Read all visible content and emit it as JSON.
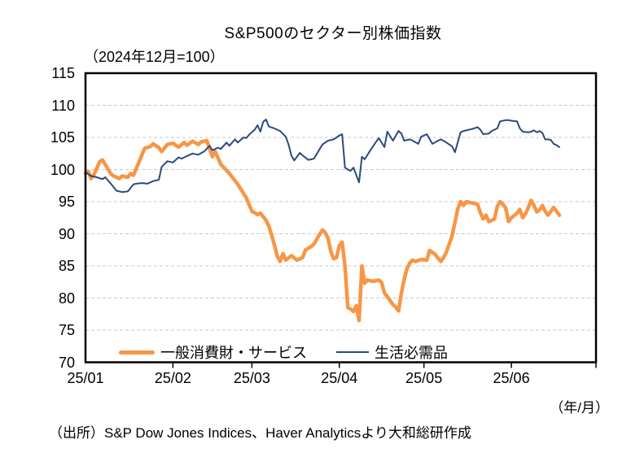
{
  "chart_data": {
    "type": "line",
    "title": "S&P500のセクター別株価指数",
    "subtitle": "（2024年12月=100）",
    "x_axis_unit_note": "（年/月）",
    "source": "（出所）S&P Dow Jones Indices、Haver Analyticsより大和総研作成",
    "ylim": [
      70,
      115
    ],
    "y_ticks": [
      115,
      110,
      105,
      100,
      95,
      90,
      85,
      80,
      75,
      70
    ],
    "x_range_days": [
      0,
      181
    ],
    "x_ticks": [
      {
        "label": "25/01",
        "day": 0
      },
      {
        "label": "25/02",
        "day": 31
      },
      {
        "label": "25/03",
        "day": 59
      },
      {
        "label": "25/04",
        "day": 90
      },
      {
        "label": "25/05",
        "day": 120
      },
      {
        "label": "25/06",
        "day": 151
      }
    ],
    "month_boundary_days": [
      31,
      59,
      90,
      120,
      151,
      181
    ],
    "grid": "horizontal-dashed",
    "grid_color": "#c8c8c8",
    "frame_color": "#000000",
    "legend_position": "bottom-inside",
    "series": [
      {
        "name": "一般消費財・サービス",
        "color": "#F79646",
        "stroke_width": 4.5,
        "points": [
          [
            0,
            99.4
          ],
          [
            1,
            99.7
          ],
          [
            2,
            98.6
          ],
          [
            3,
            99.2
          ],
          [
            5,
            101.2
          ],
          [
            6,
            101.5
          ],
          [
            7,
            100.8
          ],
          [
            9,
            99.3
          ],
          [
            10,
            99.0
          ],
          [
            12,
            98.6
          ],
          [
            13,
            99.0
          ],
          [
            15,
            98.8
          ],
          [
            16,
            99.4
          ],
          [
            17,
            99.1
          ],
          [
            19,
            101.2
          ],
          [
            21,
            103.3
          ],
          [
            23,
            103.6
          ],
          [
            24,
            104.0
          ],
          [
            26,
            103.4
          ],
          [
            27,
            102.8
          ],
          [
            29,
            103.9
          ],
          [
            31,
            104.1
          ],
          [
            33,
            103.5
          ],
          [
            35,
            104.2
          ],
          [
            36,
            103.8
          ],
          [
            38,
            104.4
          ],
          [
            40,
            103.9
          ],
          [
            41,
            104.3
          ],
          [
            43,
            104.5
          ],
          [
            45,
            102.0
          ],
          [
            46,
            102.8
          ],
          [
            48,
            100.8
          ],
          [
            51,
            99.4
          ],
          [
            54,
            97.7
          ],
          [
            57,
            95.6
          ],
          [
            59,
            93.5
          ],
          [
            61,
            93.0
          ],
          [
            62,
            93.2
          ],
          [
            64,
            92.1
          ],
          [
            65,
            91.2
          ],
          [
            66,
            89.8
          ],
          [
            67,
            88.2
          ],
          [
            68,
            86.5
          ],
          [
            69,
            85.7
          ],
          [
            70,
            86.9
          ],
          [
            71,
            85.9
          ],
          [
            73,
            86.6
          ],
          [
            75,
            85.9
          ],
          [
            77,
            86.3
          ],
          [
            78,
            87.5
          ],
          [
            80,
            88.0
          ],
          [
            81,
            88.4
          ],
          [
            83,
            89.9
          ],
          [
            84,
            90.6
          ],
          [
            85,
            90.2
          ],
          [
            86,
            89.3
          ],
          [
            87,
            87.2
          ],
          [
            88,
            86.1
          ],
          [
            89,
            86.3
          ],
          [
            90,
            88.2
          ],
          [
            91,
            88.7
          ],
          [
            92,
            85.0
          ],
          [
            93,
            78.5
          ],
          [
            94,
            78.3
          ],
          [
            95,
            77.9
          ],
          [
            96,
            78.8
          ],
          [
            97,
            76.5
          ],
          [
            98,
            85.0
          ],
          [
            99,
            82.3
          ],
          [
            100,
            82.8
          ],
          [
            102,
            82.6
          ],
          [
            104,
            82.8
          ],
          [
            105,
            82.4
          ],
          [
            106,
            80.8
          ],
          [
            107,
            80.2
          ],
          [
            109,
            79.0
          ],
          [
            110,
            78.6
          ],
          [
            111,
            78.0
          ],
          [
            112,
            80.8
          ],
          [
            113,
            82.9
          ],
          [
            114,
            84.6
          ],
          [
            115,
            85.5
          ],
          [
            116,
            85.9
          ],
          [
            117,
            85.7
          ],
          [
            119,
            86.0
          ],
          [
            121,
            85.9
          ],
          [
            122,
            87.4
          ],
          [
            124,
            86.8
          ],
          [
            125,
            86.2
          ],
          [
            126,
            85.7
          ],
          [
            127,
            86.3
          ],
          [
            128,
            87.2
          ],
          [
            130,
            89.7
          ],
          [
            131,
            91.8
          ],
          [
            132,
            93.9
          ],
          [
            133,
            95.0
          ],
          [
            134,
            94.4
          ],
          [
            135,
            95.0
          ],
          [
            137,
            94.8
          ],
          [
            139,
            94.6
          ],
          [
            140,
            93.3
          ],
          [
            141,
            92.3
          ],
          [
            142,
            92.9
          ],
          [
            143,
            91.9
          ],
          [
            145,
            92.3
          ],
          [
            146,
            94.3
          ],
          [
            147,
            95.0
          ],
          [
            148,
            94.6
          ],
          [
            149,
            94.0
          ],
          [
            150,
            91.9
          ],
          [
            151,
            92.5
          ],
          [
            153,
            93.2
          ],
          [
            154,
            93.8
          ],
          [
            155,
            92.5
          ],
          [
            156,
            93.1
          ],
          [
            157,
            94.1
          ],
          [
            158,
            95.2
          ],
          [
            159,
            94.4
          ],
          [
            160,
            93.4
          ],
          [
            161,
            93.7
          ],
          [
            162,
            94.4
          ],
          [
            163,
            93.5
          ],
          [
            164,
            92.9
          ],
          [
            165,
            93.5
          ],
          [
            166,
            94.1
          ],
          [
            167,
            93.5
          ],
          [
            168,
            92.9
          ]
        ]
      },
      {
        "name": "生活必需品",
        "color": "#2B4A7D",
        "stroke_width": 2,
        "points": [
          [
            0,
            99.6
          ],
          [
            2,
            99.0
          ],
          [
            4,
            98.8
          ],
          [
            6,
            98.5
          ],
          [
            7,
            98.8
          ],
          [
            9,
            97.8
          ],
          [
            11,
            96.7
          ],
          [
            13,
            96.5
          ],
          [
            15,
            96.6
          ],
          [
            17,
            97.7
          ],
          [
            18,
            97.8
          ],
          [
            20,
            97.9
          ],
          [
            22,
            97.8
          ],
          [
            24,
            98.2
          ],
          [
            26,
            98.4
          ],
          [
            27,
            100.4
          ],
          [
            29,
            101.3
          ],
          [
            31,
            101.1
          ],
          [
            33,
            101.9
          ],
          [
            34,
            101.7
          ],
          [
            36,
            102.1
          ],
          [
            38,
            102.5
          ],
          [
            40,
            102.3
          ],
          [
            42,
            102.8
          ],
          [
            44,
            103.7
          ],
          [
            45,
            103.0
          ],
          [
            47,
            103.4
          ],
          [
            48,
            103.2
          ],
          [
            50,
            104.2
          ],
          [
            51,
            103.7
          ],
          [
            53,
            104.7
          ],
          [
            54,
            104.2
          ],
          [
            56,
            105.0
          ],
          [
            57,
            104.9
          ],
          [
            58,
            105.4
          ],
          [
            60,
            106.2
          ],
          [
            61,
            106.9
          ],
          [
            62,
            105.9
          ],
          [
            63,
            107.4
          ],
          [
            64,
            107.8
          ],
          [
            65,
            106.7
          ],
          [
            67,
            106.4
          ],
          [
            69,
            106.0
          ],
          [
            71,
            105.1
          ],
          [
            72,
            103.9
          ],
          [
            73,
            102.2
          ],
          [
            74,
            101.4
          ],
          [
            76,
            102.6
          ],
          [
            77,
            102.2
          ],
          [
            79,
            101.5
          ],
          [
            81,
            101.7
          ],
          [
            84,
            103.9
          ],
          [
            86,
            104.5
          ],
          [
            88,
            104.7
          ],
          [
            90,
            105.3
          ],
          [
            91,
            105.5
          ],
          [
            92,
            100.3
          ],
          [
            93,
            100.0
          ],
          [
            94,
            99.8
          ],
          [
            95,
            100.3
          ],
          [
            97,
            98.0
          ],
          [
            98,
            102.0
          ],
          [
            99,
            101.6
          ],
          [
            101,
            103.0
          ],
          [
            103,
            104.3
          ],
          [
            104,
            104.9
          ],
          [
            106,
            103.5
          ],
          [
            107,
            105.9
          ],
          [
            109,
            104.5
          ],
          [
            111,
            106.0
          ],
          [
            112,
            105.6
          ],
          [
            113,
            104.5
          ],
          [
            115,
            104.7
          ],
          [
            116,
            104.5
          ],
          [
            118,
            104.0
          ],
          [
            119,
            105.1
          ],
          [
            121,
            105.5
          ],
          [
            123,
            104.0
          ],
          [
            125,
            104.5
          ],
          [
            126,
            104.7
          ],
          [
            128,
            104.2
          ],
          [
            130,
            103.6
          ],
          [
            131,
            102.7
          ],
          [
            133,
            105.8
          ],
          [
            134,
            106.0
          ],
          [
            136,
            106.2
          ],
          [
            137,
            106.3
          ],
          [
            139,
            106.6
          ],
          [
            140,
            106.2
          ],
          [
            141,
            105.5
          ],
          [
            143,
            105.6
          ],
          [
            144,
            106.0
          ],
          [
            146,
            106.4
          ],
          [
            147,
            107.5
          ],
          [
            149,
            107.7
          ],
          [
            150,
            107.7
          ],
          [
            151,
            107.6
          ],
          [
            153,
            107.5
          ],
          [
            154,
            106.4
          ],
          [
            155,
            105.9
          ],
          [
            157,
            105.8
          ],
          [
            158,
            105.9
          ],
          [
            159,
            106.1
          ],
          [
            160,
            105.8
          ],
          [
            161,
            106.0
          ],
          [
            162,
            105.7
          ],
          [
            163,
            104.7
          ],
          [
            164,
            104.7
          ],
          [
            165,
            104.6
          ],
          [
            166,
            104.0
          ],
          [
            167,
            103.8
          ],
          [
            168,
            103.5
          ]
        ]
      }
    ]
  }
}
